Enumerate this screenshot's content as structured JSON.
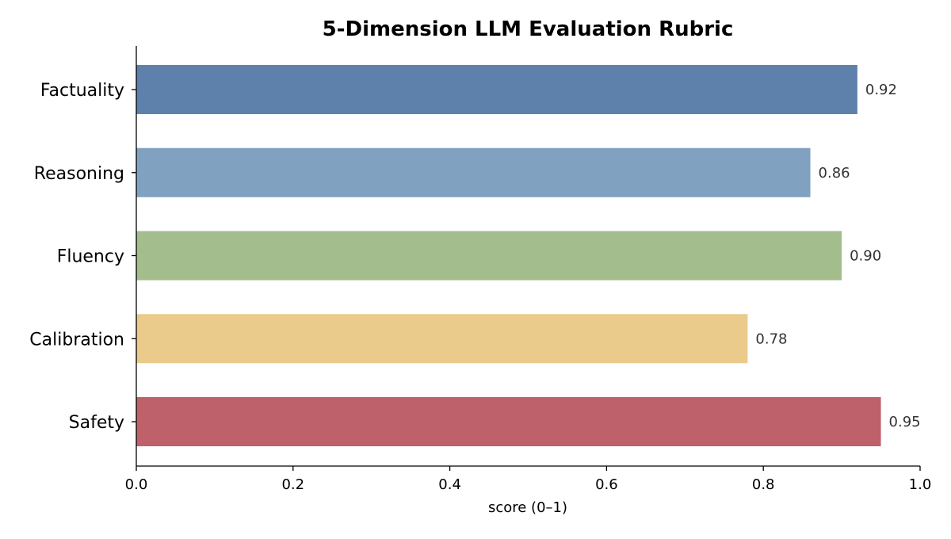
{
  "chart_data": {
    "type": "bar",
    "orientation": "horizontal",
    "title": "5-Dimension LLM Evaluation Rubric",
    "xlabel": "score (0–1)",
    "ylabel": "",
    "xlim": [
      0,
      1.0
    ],
    "xticks": [
      "0.0",
      "0.2",
      "0.4",
      "0.6",
      "0.8",
      "1.0"
    ],
    "categories": [
      "Factuality",
      "Reasoning",
      "Fluency",
      "Calibration",
      "Safety"
    ],
    "values": [
      0.92,
      0.86,
      0.9,
      0.78,
      0.95
    ],
    "value_labels": [
      "0.92",
      "0.86",
      "0.90",
      "0.78",
      "0.95"
    ],
    "colors": [
      "#5e81ac",
      "#81a1c1",
      "#a3be8c",
      "#ebcb8b",
      "#bf616a"
    ],
    "grid": false,
    "legend": "none"
  }
}
